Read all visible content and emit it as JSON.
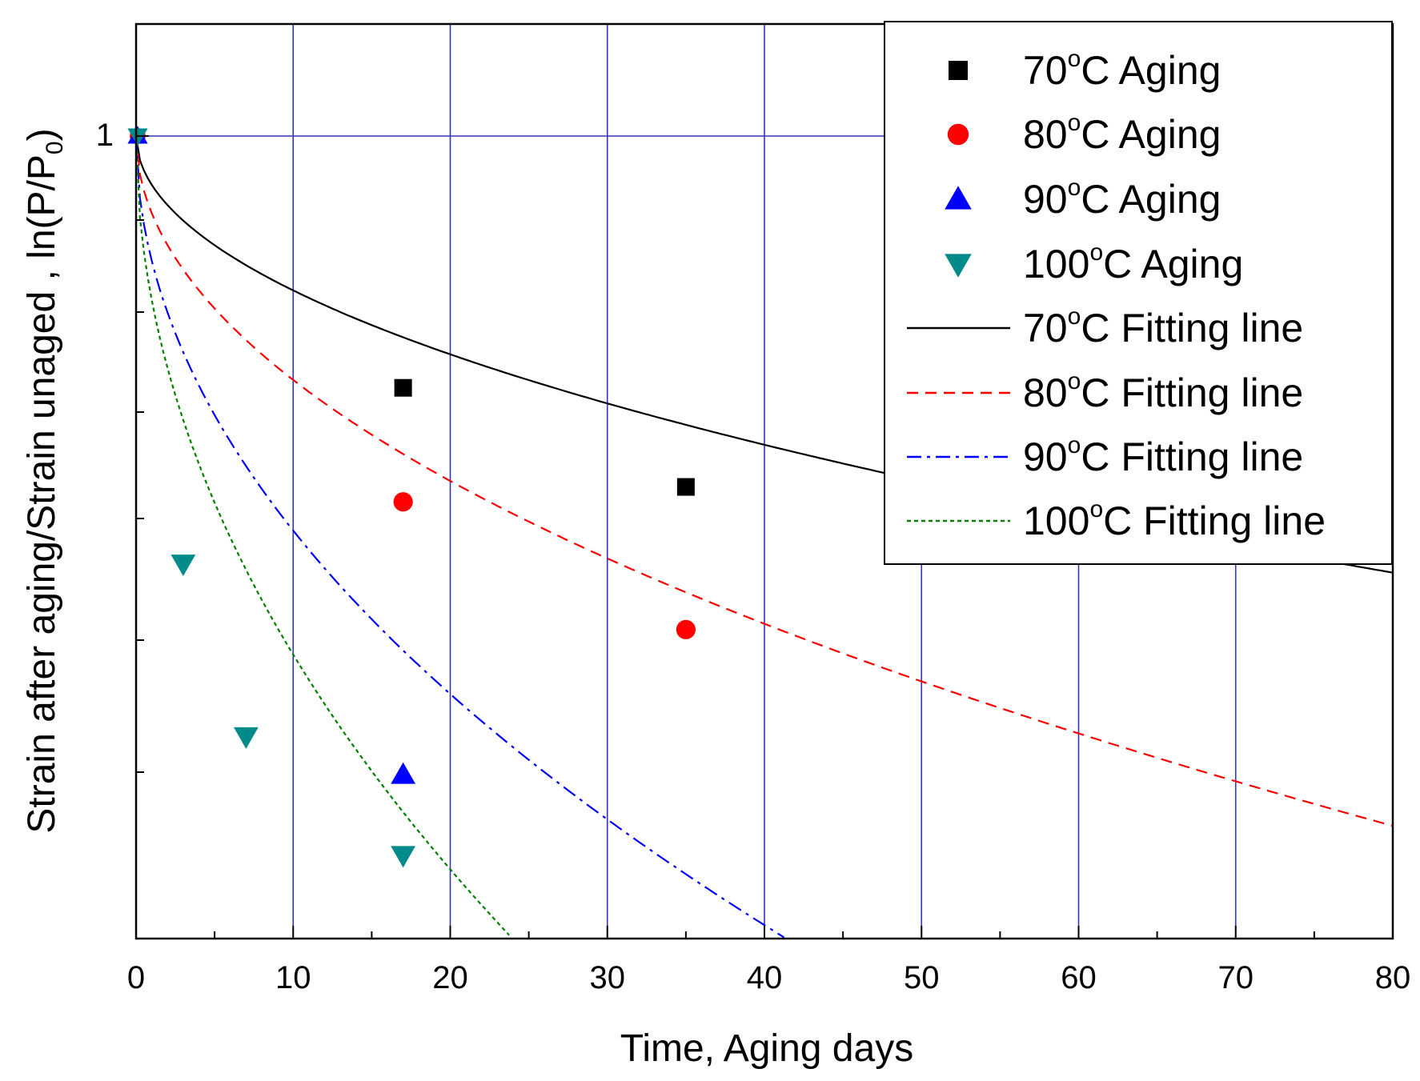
{
  "chart_data": {
    "type": "scatter",
    "xlabel": "Time, Aging days",
    "ylabel_main": "Strain after aging/Strain unaged , ln(P/P",
    "ylabel_sub": "0",
    "ylabel_close": ")",
    "xlim": [
      0,
      80
    ],
    "xticks": [
      "0",
      "10",
      "20",
      "30",
      "40",
      "50",
      "60",
      "70",
      "80"
    ],
    "ytick_label": "1",
    "ytick_label_value": 1.0,
    "grid": true,
    "legend_position": "top-right",
    "scatter_series": [
      {
        "name_prefix": "70",
        "name_suffix": "C Aging",
        "color": "#000000",
        "marker": "square",
        "points": [
          [
            17,
            0.79
          ],
          [
            35,
            0.72
          ]
        ]
      },
      {
        "name_prefix": "80",
        "name_suffix": "C Aging",
        "color": "#ff0000",
        "marker": "circle",
        "points": [
          [
            17,
            0.71
          ],
          [
            35,
            0.63
          ]
        ]
      },
      {
        "name_prefix": "90",
        "name_suffix": "C Aging",
        "color": "#0000ff",
        "marker": "triangle-up",
        "points": [
          [
            17,
            0.55
          ]
        ]
      },
      {
        "name_prefix": "100",
        "name_suffix": "C Aging",
        "color": "#008b8b",
        "marker": "triangle-down",
        "points": [
          [
            3,
            0.67
          ],
          [
            7,
            0.57
          ],
          [
            17,
            0.51
          ]
        ]
      }
    ],
    "fit_series": [
      {
        "name_prefix": "70",
        "name_suffix": "C Fitting line",
        "color": "#000000",
        "dash": "solid",
        "k": 0.0457
      },
      {
        "name_prefix": "80",
        "name_suffix": "C Fitting line",
        "color": "#ff0000",
        "dash": "dash",
        "k": 0.0722
      },
      {
        "name_prefix": "90",
        "name_suffix": "C Fitting line",
        "color": "#0000ff",
        "dash": "dashdot",
        "k": 0.1168
      },
      {
        "name_prefix": "100",
        "name_suffix": "C Fitting line",
        "color": "#008000",
        "dash": "dot",
        "k": 0.1535
      }
    ],
    "degree_symbol": "o"
  }
}
